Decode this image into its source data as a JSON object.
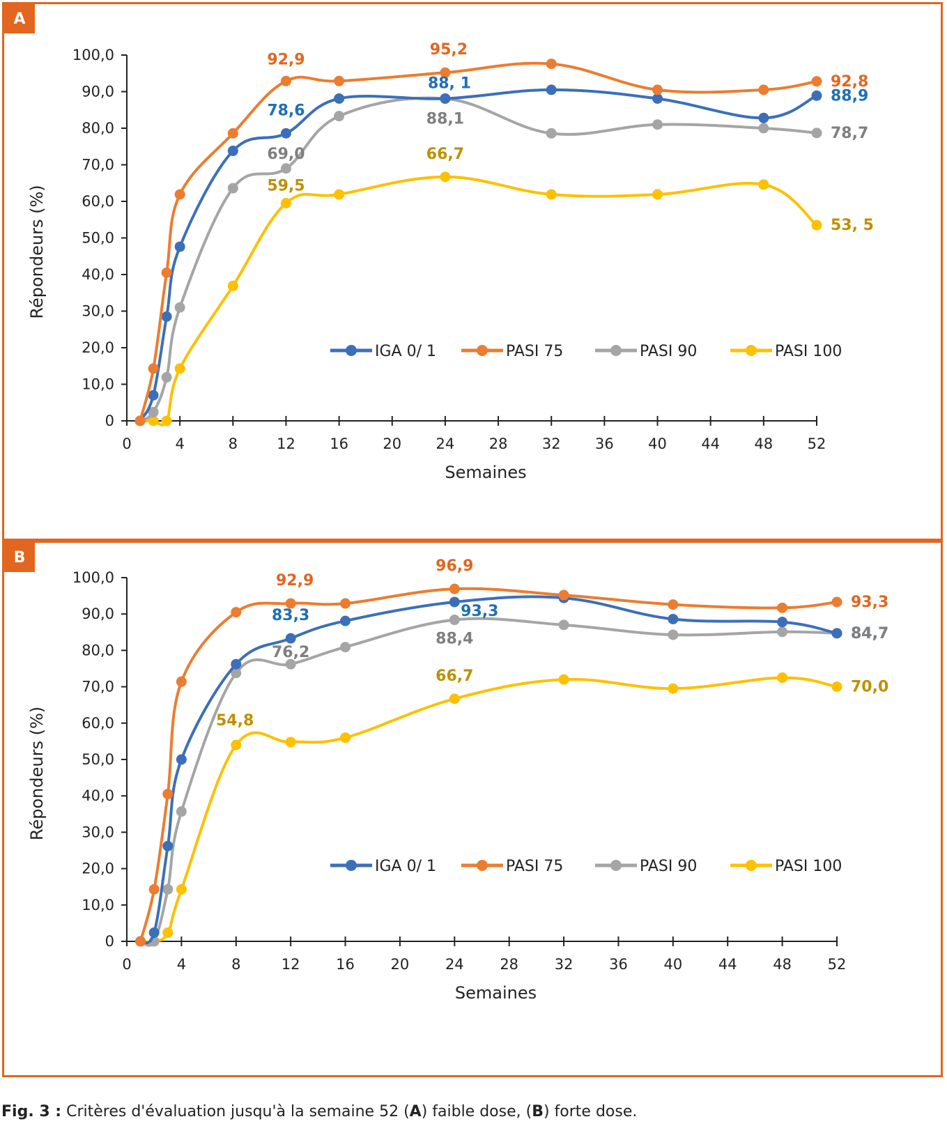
{
  "caption": {
    "label": "Fig. 3 :",
    "text_1": " Critères d'évaluation jusqu'à la semaine 52 (",
    "a": "A",
    "text_2": ") faible dose, (",
    "b": "B",
    "text_3": ") forte dose."
  },
  "colors": {
    "frame": "#e2661f",
    "iga": "#3c6fba",
    "pasi75": "#ec7c30",
    "pasi90": "#a5a5a5",
    "pasi100": "#fec000",
    "label_iga": "#1f6fb5",
    "label_pasi75": "#e2661f",
    "label_pasi90": "#7f7f7f",
    "label_pasi100": "#bf9000"
  },
  "chart_data": [
    {
      "panel": "A",
      "type": "line",
      "xlabel": "Semaines",
      "ylabel": "Répondeurs (%)",
      "xlim": [
        0,
        52
      ],
      "ylim": [
        0,
        100
      ],
      "xticks": [
        "0",
        "4",
        "8",
        "12",
        "16",
        "20",
        "24",
        "28",
        "32",
        "36",
        "40",
        "44",
        "48",
        "52"
      ],
      "yticks": [
        "0",
        "10,0",
        "20,0",
        "30,0",
        "40,0",
        "50,0",
        "60,0",
        "70,0",
        "80,0",
        "90,0",
        "100,0"
      ],
      "legend_position": "inside-lower-right",
      "series": [
        {
          "name": "IGA 0/ 1",
          "key": "iga",
          "x": [
            1,
            2,
            3,
            4,
            8,
            12,
            16,
            24,
            32,
            40,
            48,
            52
          ],
          "y": [
            0,
            7,
            28.5,
            47.6,
            73.8,
            78.6,
            88.1,
            88.1,
            90.5,
            88.1,
            82.8,
            88.9
          ]
        },
        {
          "name": "PASI 75",
          "key": "pasi75",
          "x": [
            1,
            2,
            3,
            4,
            8,
            12,
            16,
            24,
            32,
            40,
            48,
            52
          ],
          "y": [
            0,
            14.3,
            40.5,
            61.9,
            78.6,
            92.9,
            92.9,
            95.2,
            97.6,
            90.5,
            90.5,
            92.8
          ]
        },
        {
          "name": "PASI 90",
          "key": "pasi90",
          "x": [
            1,
            2,
            3,
            4,
            8,
            12,
            16,
            24,
            32,
            40,
            48,
            52
          ],
          "y": [
            0,
            2.4,
            11.9,
            31,
            63.6,
            69,
            83.3,
            88.1,
            78.6,
            81,
            80,
            78.7
          ]
        },
        {
          "name": "PASI 100",
          "key": "pasi100",
          "x": [
            1,
            2,
            3,
            4,
            8,
            12,
            16,
            24,
            32,
            40,
            48,
            52
          ],
          "y": [
            0,
            0,
            0,
            14.3,
            36.9,
            59.5,
            61.9,
            66.7,
            61.9,
            61.9,
            64.6,
            53.5
          ]
        }
      ],
      "annotations": [
        {
          "series": "pasi75",
          "x": 12,
          "y": 92.9,
          "text": "92,9"
        },
        {
          "series": "pasi75",
          "x": 24,
          "y": 95.2,
          "text": "95,2"
        },
        {
          "series": "pasi75",
          "x": 52,
          "y": 92.8,
          "text": "92,8"
        },
        {
          "series": "iga",
          "x": 12,
          "y": 78.6,
          "text": "78,6"
        },
        {
          "series": "iga",
          "x": 24,
          "y": 88.1,
          "text": "88, 1"
        },
        {
          "series": "iga",
          "x": 52,
          "y": 88.9,
          "text": "88,9"
        },
        {
          "series": "pasi90",
          "x": 12,
          "y": 69,
          "text": "69,0"
        },
        {
          "series": "pasi90",
          "x": 24,
          "y": 88.1,
          "text": "88,1"
        },
        {
          "series": "pasi90",
          "x": 52,
          "y": 78.7,
          "text": "78,7"
        },
        {
          "series": "pasi100",
          "x": 12,
          "y": 59.5,
          "text": "59,5"
        },
        {
          "series": "pasi100",
          "x": 24,
          "y": 66.7,
          "text": "66,7"
        },
        {
          "series": "pasi100",
          "x": 52,
          "y": 53.5,
          "text": "53, 5"
        }
      ]
    },
    {
      "panel": "B",
      "type": "line",
      "xlabel": "Semaines",
      "ylabel": "Répondeurs (%)",
      "xlim": [
        0,
        52
      ],
      "ylim": [
        0,
        100
      ],
      "xticks": [
        "0",
        "4",
        "8",
        "12",
        "16",
        "20",
        "24",
        "28",
        "32",
        "36",
        "40",
        "44",
        "48",
        "52"
      ],
      "yticks": [
        "0",
        "10,0",
        "20,0",
        "30,0",
        "40,0",
        "50,0",
        "60,0",
        "70,0",
        "80,0",
        "90,0",
        "100,0"
      ],
      "legend_position": "inside-lower-right",
      "series": [
        {
          "name": "IGA 0/ 1",
          "key": "iga",
          "x": [
            1,
            2,
            3,
            4,
            8,
            12,
            16,
            24,
            32,
            40,
            48,
            52
          ],
          "y": [
            0,
            2.4,
            26.2,
            50,
            76.2,
            83.3,
            88.1,
            93.3,
            94.4,
            88.6,
            87.8,
            84.7
          ]
        },
        {
          "name": "PASI 75",
          "key": "pasi75",
          "x": [
            1,
            2,
            3,
            4,
            8,
            12,
            16,
            24,
            32,
            40,
            48,
            52
          ],
          "y": [
            0,
            14.3,
            40.5,
            71.4,
            90.5,
            92.9,
            92.9,
            96.9,
            95.2,
            92.6,
            91.7,
            93.3
          ]
        },
        {
          "name": "PASI 90",
          "key": "pasi90",
          "x": [
            1,
            2,
            3,
            4,
            8,
            12,
            16,
            24,
            32,
            40,
            48,
            52
          ],
          "y": [
            0,
            0,
            14.3,
            35.7,
            73.8,
            76.2,
            80.9,
            88.4,
            87,
            84.3,
            85.1,
            84.7
          ]
        },
        {
          "name": "PASI 100",
          "key": "pasi100",
          "x": [
            1,
            2,
            3,
            4,
            8,
            12,
            16,
            24,
            32,
            40,
            48,
            52
          ],
          "y": [
            0,
            0,
            2.4,
            14.3,
            54,
            54.8,
            56,
            66.7,
            72,
            69.5,
            72.5,
            70
          ]
        }
      ],
      "annotations": [
        {
          "series": "pasi75",
          "x": 12,
          "y": 92.9,
          "text": "92,9"
        },
        {
          "series": "pasi75",
          "x": 24,
          "y": 96.9,
          "text": "96,9"
        },
        {
          "series": "pasi75",
          "x": 52,
          "y": 93.3,
          "text": "93,3"
        },
        {
          "series": "iga",
          "x": 12,
          "y": 83.3,
          "text": "83,3"
        },
        {
          "series": "iga",
          "x": 24,
          "y": 93.3,
          "text": "93,3"
        },
        {
          "series": "iga",
          "x": 52,
          "y": 84.7,
          "text": "84,7"
        },
        {
          "series": "pasi90",
          "x": 12,
          "y": 76.2,
          "text": "76,2"
        },
        {
          "series": "pasi90",
          "x": 24,
          "y": 88.4,
          "text": "88,4"
        },
        {
          "series": "pasi90",
          "x": 52,
          "y": 84.7,
          "text": "84,7"
        },
        {
          "series": "pasi100",
          "x": 12,
          "y": 54.8,
          "text": "54,8"
        },
        {
          "series": "pasi100",
          "x": 24,
          "y": 66.7,
          "text": "66,7"
        },
        {
          "series": "pasi100",
          "x": 52,
          "y": 70,
          "text": "70,0"
        }
      ]
    }
  ]
}
